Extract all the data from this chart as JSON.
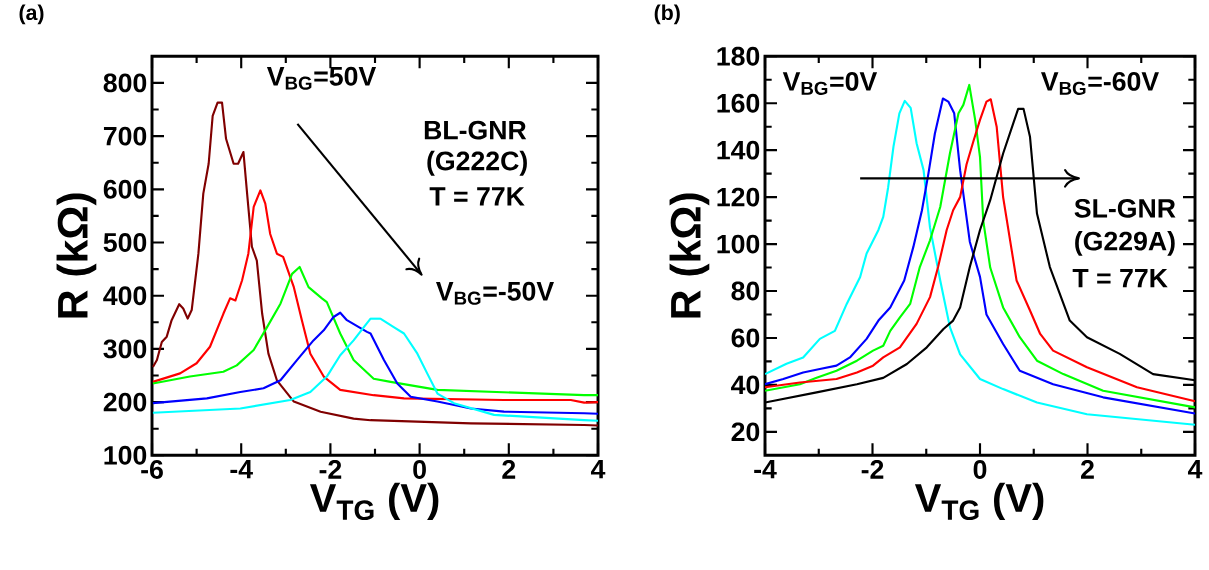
{
  "chart_data": [
    {
      "type": "line",
      "title": "(a)",
      "xlabel": "V$_{TG}$ (V)",
      "ylabel": "R (kΩ)",
      "annotations": [
        "V$_{BG}$=50V",
        "BL-GNR",
        "(G222C)",
        "T = 77K",
        "V$_{BG}$=-50V"
      ],
      "xlim": [
        -6,
        4
      ],
      "ylim": [
        100,
        850
      ],
      "xticks": [
        -6,
        -4,
        -2,
        0,
        2,
        4
      ],
      "yticks": [
        100,
        200,
        300,
        400,
        500,
        600,
        700,
        800
      ],
      "series": [
        {
          "color": "#800000",
          "x": [
            -5.98,
            -5.89,
            -5.78,
            -5.67,
            -5.56,
            -5.39,
            -5.3,
            -5.2,
            -5.11,
            -4.96,
            -4.85,
            -4.73,
            -4.64,
            -4.53,
            -4.43,
            -4.34,
            -4.17,
            -4.07,
            -3.95,
            -3.86,
            -3.76,
            -3.65,
            -3.53,
            -3.39,
            -3.2,
            -2.82,
            -2.22,
            -1.48,
            -1.1,
            1.15,
            3.69,
            4.0
          ],
          "values": [
            266,
            279,
            313,
            323,
            354,
            384,
            376,
            357,
            373,
            479,
            592,
            648,
            738,
            763,
            763,
            695,
            648,
            648,
            670,
            585,
            492,
            466,
            366,
            291,
            241,
            201,
            182,
            169,
            166,
            160,
            157,
            156
          ]
        },
        {
          "color": "#ff0000",
          "x": [
            -5.98,
            -5.37,
            -5.0,
            -4.7,
            -4.4,
            -4.25,
            -4.13,
            -3.98,
            -3.84,
            -3.72,
            -3.57,
            -3.46,
            -3.35,
            -3.2,
            -3.06,
            -2.82,
            -2.64,
            -2.45,
            -2.15,
            -1.78,
            -1.03,
            -0.35,
            1.89,
            3.39,
            3.69,
            4.0
          ],
          "values": [
            238,
            254,
            273,
            304,
            366,
            395,
            391,
            429,
            479,
            567,
            598,
            573,
            516,
            479,
            473,
            416,
            354,
            291,
            248,
            223,
            213,
            207,
            204,
            204,
            199,
            200
          ]
        },
        {
          "color": "#00ff00",
          "x": [
            -5.98,
            -5.15,
            -4.4,
            -4.1,
            -3.72,
            -3.42,
            -3.12,
            -2.86,
            -2.69,
            -2.49,
            -2.19,
            -2.08,
            -1.78,
            -1.48,
            -1.03,
            -0.65,
            0.4,
            3.69,
            4.0
          ],
          "values": [
            235,
            248,
            257,
            269,
            298,
            341,
            385,
            441,
            454,
            416,
            395,
            388,
            329,
            279,
            244,
            238,
            223,
            213,
            213
          ]
        },
        {
          "color": "#0000ff",
          "x": [
            -5.98,
            -4.77,
            -4.02,
            -3.5,
            -3.12,
            -2.75,
            -2.38,
            -2.15,
            -1.93,
            -1.78,
            -1.63,
            -1.18,
            -1.1,
            -0.8,
            -0.5,
            -0.2,
            0.4,
            1.15,
            1.89,
            3.69,
            4.0
          ],
          "values": [
            198,
            207,
            219,
            226,
            241,
            279,
            316,
            335,
            360,
            368,
            354,
            332,
            329,
            279,
            235,
            210,
            201,
            188,
            182,
            179,
            178
          ]
        },
        {
          "color": "#00ffff",
          "x": [
            -5.98,
            -4.02,
            -2.9,
            -2.45,
            -2.08,
            -1.78,
            -1.48,
            -1.25,
            -1.1,
            -0.88,
            -0.58,
            -0.35,
            -0.05,
            0.17,
            0.4,
            0.77,
            1.67,
            3.69,
            4.0
          ],
          "values": [
            180,
            188,
            204,
            219,
            248,
            288,
            316,
            341,
            357,
            357,
            341,
            329,
            291,
            254,
            216,
            198,
            176,
            166,
            165
          ]
        }
      ]
    },
    {
      "type": "line",
      "title": "(b)",
      "xlabel": "V$_{TG}$ (V)",
      "ylabel": "R (kΩ)",
      "annotations": [
        "V$_{BG}$=0V",
        "V$_{BG}$=-60V",
        "SL-GNR",
        "(G229A)",
        "T = 77K"
      ],
      "xlim": [
        -4,
        4
      ],
      "ylim": [
        10,
        180
      ],
      "xticks": [
        -4,
        -2,
        0,
        2,
        4
      ],
      "yticks": [
        20,
        40,
        60,
        80,
        100,
        120,
        140,
        160,
        180
      ],
      "series": [
        {
          "color": "#00ffff",
          "x": [
            -4.0,
            -3.6,
            -3.29,
            -2.98,
            -2.7,
            -2.48,
            -2.23,
            -2.11,
            -1.89,
            -1.8,
            -1.71,
            -1.61,
            -1.5,
            -1.4,
            -1.29,
            -1.18,
            -1.05,
            -0.93,
            -0.74,
            -0.56,
            -0.37,
            0.0,
            0.43,
            1.06,
            1.99,
            4.0
          ],
          "values": [
            44.6,
            49,
            51.7,
            59.6,
            63,
            74.5,
            86,
            96,
            106,
            111.6,
            124,
            141.5,
            155.7,
            161,
            158,
            143,
            131.5,
            107,
            84.5,
            64.6,
            53,
            42.5,
            38.2,
            32.5,
            27.5,
            23
          ]
        },
        {
          "color": "#0000ff",
          "x": [
            -4.0,
            -3.66,
            -3.29,
            -2.98,
            -2.67,
            -2.42,
            -2.11,
            -1.89,
            -1.67,
            -1.41,
            -1.24,
            -1.08,
            -0.96,
            -0.84,
            -0.69,
            -0.59,
            -0.48,
            -0.37,
            -0.19,
            0.0,
            0.12,
            0.43,
            0.74,
            1.36,
            2.29,
            4.0
          ],
          "values": [
            40.3,
            42.5,
            45.3,
            46.8,
            48.2,
            51.7,
            59.6,
            67.4,
            73,
            84.5,
            98.8,
            114.4,
            130,
            147,
            162,
            160.7,
            155.7,
            131.5,
            101,
            86,
            70,
            57.4,
            46,
            40.3,
            34.7,
            27.8
          ]
        },
        {
          "color": "#00ff00",
          "x": [
            -4.0,
            -3.35,
            -3.04,
            -2.67,
            -2.29,
            -1.99,
            -1.8,
            -1.67,
            -1.49,
            -1.3,
            -1.12,
            -0.93,
            -0.74,
            -0.56,
            -0.4,
            -0.31,
            -0.2,
            -0.09,
            0.0,
            0.06,
            0.19,
            0.43,
            0.74,
            1.06,
            1.55,
            2.29,
            4.0
          ],
          "values": [
            37.5,
            40.3,
            43,
            46,
            50.3,
            54.6,
            56.7,
            63,
            68.8,
            74.5,
            90.2,
            101.6,
            115.8,
            138.6,
            155.7,
            159.3,
            167.8,
            152.9,
            137,
            110,
            90,
            73,
            60.3,
            50.3,
            44.6,
            37.5,
            30.4
          ]
        },
        {
          "color": "#ff0000",
          "x": [
            -4.0,
            -3.35,
            -2.67,
            -2.29,
            -1.99,
            -1.8,
            -1.49,
            -1.18,
            -0.93,
            -0.78,
            -0.62,
            -0.5,
            -0.37,
            -0.25,
            -0.12,
            0.0,
            0.12,
            0.2,
            0.31,
            0.43,
            0.68,
            0.93,
            1.12,
            1.36,
            1.99,
            2.92,
            4.0
          ],
          "values": [
            39,
            41,
            42.5,
            45.3,
            48.2,
            51.7,
            56,
            66,
            77.4,
            90.2,
            106,
            114.4,
            120,
            134,
            144,
            152.9,
            160.7,
            161.7,
            150,
            120,
            84.5,
            71.7,
            61.7,
            54.6,
            47.5,
            39,
            33
          ]
        },
        {
          "color": "#000000",
          "x": [
            -4.0,
            -3.04,
            -2.29,
            -1.8,
            -1.36,
            -0.99,
            -0.68,
            -0.5,
            -0.37,
            -0.19,
            0.0,
            0.19,
            0.43,
            0.62,
            0.71,
            0.81,
            0.93,
            1.06,
            1.3,
            1.67,
            1.99,
            2.6,
            3.22,
            4.0
          ],
          "values": [
            32.5,
            36.8,
            40.3,
            43,
            48.9,
            56,
            63.8,
            67.4,
            73,
            90.2,
            106,
            118.7,
            138.6,
            151.5,
            157.6,
            157.6,
            145.7,
            113,
            90.2,
            67.4,
            60.3,
            53.2,
            44.6,
            42
          ]
        }
      ]
    }
  ]
}
